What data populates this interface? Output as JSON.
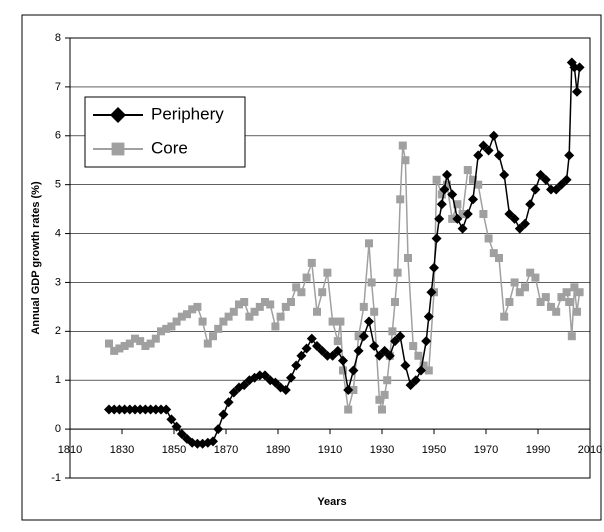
{
  "chart_data": {
    "type": "line",
    "xlabel": "Years",
    "ylabel": "Annual GDP growth rates (%)",
    "xlim": [
      1810,
      2010
    ],
    "xticks": [
      1810,
      1830,
      1850,
      1870,
      1890,
      1910,
      1930,
      1950,
      1970,
      1990,
      2010
    ],
    "ylim": [
      -1,
      8
    ],
    "yticks": [
      -1,
      0,
      1,
      2,
      3,
      4,
      5,
      6,
      7,
      8
    ],
    "grid": true,
    "legend": "upper left",
    "series": [
      {
        "name": "Periphery",
        "color": "#000000",
        "marker": "diamond",
        "x": [
          1825,
          1827,
          1829,
          1831,
          1833,
          1835,
          1837,
          1839,
          1841,
          1843,
          1845,
          1847,
          1849,
          1851,
          1853,
          1855,
          1857,
          1859,
          1861,
          1863,
          1865,
          1867,
          1869,
          1871,
          1873,
          1875,
          1877,
          1879,
          1881,
          1883,
          1885,
          1887,
          1889,
          1891,
          1893,
          1895,
          1897,
          1899,
          1901,
          1903,
          1905,
          1907,
          1909,
          1911,
          1913,
          1915,
          1917,
          1919,
          1921,
          1923,
          1925,
          1927,
          1929,
          1931,
          1933,
          1935,
          1937,
          1939,
          1941,
          1943,
          1945,
          1947,
          1948,
          1949,
          1950,
          1951,
          1952,
          1953,
          1954,
          1955,
          1957,
          1959,
          1961,
          1963,
          1965,
          1967,
          1969,
          1971,
          1973,
          1975,
          1977,
          1979,
          1981,
          1983,
          1985,
          1987,
          1989,
          1991,
          1993,
          1995,
          1997,
          1999,
          2001,
          2002,
          2003,
          2004,
          2005,
          2006
        ],
        "values": [
          0.4,
          0.4,
          0.4,
          0.4,
          0.4,
          0.4,
          0.4,
          0.4,
          0.4,
          0.4,
          0.4,
          0.4,
          0.2,
          0.05,
          -0.1,
          -0.2,
          -0.28,
          -0.3,
          -0.3,
          -0.28,
          -0.25,
          0,
          0.3,
          0.55,
          0.75,
          0.85,
          0.9,
          1.0,
          1.05,
          1.1,
          1.1,
          1.0,
          0.95,
          0.85,
          0.8,
          1.05,
          1.3,
          1.5,
          1.65,
          1.85,
          1.7,
          1.6,
          1.5,
          1.5,
          1.6,
          1.4,
          0.8,
          1.2,
          1.6,
          1.9,
          2.2,
          1.7,
          1.5,
          1.6,
          1.5,
          1.8,
          1.9,
          1.3,
          0.9,
          1.0,
          1.2,
          1.8,
          2.3,
          2.8,
          3.3,
          3.9,
          4.3,
          4.6,
          4.9,
          5.2,
          4.8,
          4.3,
          4.1,
          4.4,
          4.7,
          5.6,
          5.8,
          5.7,
          6.0,
          5.6,
          5.2,
          4.4,
          4.3,
          4.1,
          4.2,
          4.6,
          4.9,
          5.2,
          5.1,
          4.9,
          4.9,
          5.0,
          5.1,
          5.6,
          7.5,
          7.4,
          6.9,
          7.4
        ]
      },
      {
        "name": "Core",
        "color": "#a0a0a0",
        "marker": "square",
        "x": [
          1825,
          1827,
          1829,
          1831,
          1833,
          1835,
          1837,
          1839,
          1841,
          1843,
          1845,
          1847,
          1849,
          1851,
          1853,
          1855,
          1857,
          1859,
          1861,
          1863,
          1865,
          1867,
          1869,
          1871,
          1873,
          1875,
          1877,
          1879,
          1881,
          1883,
          1885,
          1887,
          1889,
          1891,
          1893,
          1895,
          1897,
          1899,
          1901,
          1903,
          1905,
          1907,
          1909,
          1911,
          1913,
          1914,
          1915,
          1917,
          1919,
          1921,
          1923,
          1925,
          1926,
          1927,
          1929,
          1930,
          1931,
          1932,
          1933,
          1934,
          1935,
          1936,
          1937,
          1938,
          1939,
          1940,
          1942,
          1944,
          1946,
          1948,
          1950,
          1951,
          1953,
          1955,
          1957,
          1959,
          1961,
          1963,
          1965,
          1967,
          1969,
          1971,
          1973,
          1975,
          1977,
          1979,
          1981,
          1983,
          1985,
          1987,
          1989,
          1991,
          1993,
          1995,
          1997,
          1999,
          2001,
          2002,
          2003,
          2004,
          2005,
          2006
        ],
        "values": [
          1.75,
          1.6,
          1.65,
          1.7,
          1.75,
          1.85,
          1.8,
          1.7,
          1.75,
          1.85,
          2.0,
          2.05,
          2.1,
          2.2,
          2.3,
          2.35,
          2.45,
          2.5,
          2.2,
          1.75,
          1.9,
          2.05,
          2.2,
          2.3,
          2.4,
          2.55,
          2.6,
          2.3,
          2.4,
          2.5,
          2.6,
          2.55,
          2.1,
          2.3,
          2.5,
          2.6,
          2.9,
          2.8,
          3.1,
          3.4,
          2.4,
          2.8,
          3.2,
          2.2,
          1.8,
          2.2,
          1.2,
          0.4,
          0.8,
          1.9,
          2.5,
          3.8,
          3.0,
          2.4,
          0.6,
          0.4,
          0.7,
          1.0,
          1.5,
          2.0,
          2.6,
          3.2,
          4.7,
          5.8,
          5.5,
          3.5,
          1.7,
          1.5,
          1.3,
          1.2,
          2.8,
          5.1,
          4.8,
          5.0,
          4.3,
          4.6,
          4.4,
          5.3,
          5.1,
          5.0,
          4.4,
          3.9,
          3.6,
          3.5,
          2.3,
          2.6,
          3.0,
          2.8,
          2.9,
          3.2,
          3.1,
          2.6,
          2.7,
          2.5,
          2.4,
          2.7,
          2.8,
          2.6,
          1.9,
          2.9,
          2.4,
          2.8
        ]
      }
    ]
  }
}
